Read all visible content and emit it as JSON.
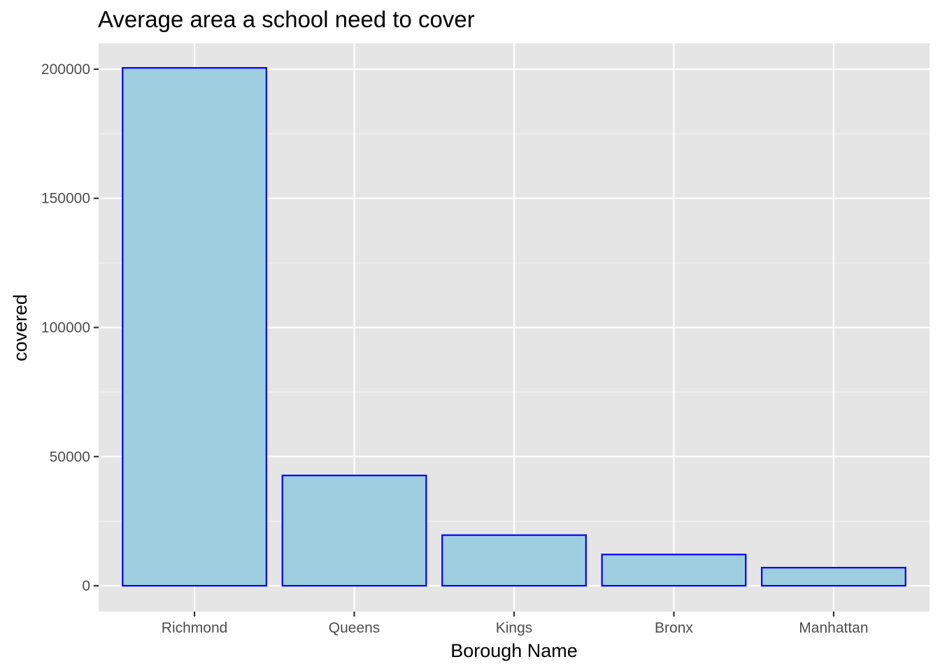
{
  "chart_data": {
    "type": "bar",
    "title": "Average area a school need to cover",
    "xlabel": "Borough Name",
    "ylabel": "covered",
    "categories": [
      "Richmond",
      "Queens",
      "Kings",
      "Bronx",
      "Manhattan"
    ],
    "values": [
      200500,
      42700,
      19600,
      12100,
      7000
    ],
    "ylim": [
      -10000,
      210000
    ],
    "yticks": [
      0,
      50000,
      100000,
      150000,
      200000
    ],
    "ytick_labels": [
      "0",
      "50000",
      "100000",
      "150000",
      "200000"
    ],
    "grid": true,
    "legend": "none",
    "colors": {
      "bar_fill": "#9ecfe0",
      "bar_outline": "#0000ff",
      "panel_background": "#e5e5e5",
      "grid_major": "#ffffff",
      "grid_minor": "#f2f2f2"
    }
  }
}
